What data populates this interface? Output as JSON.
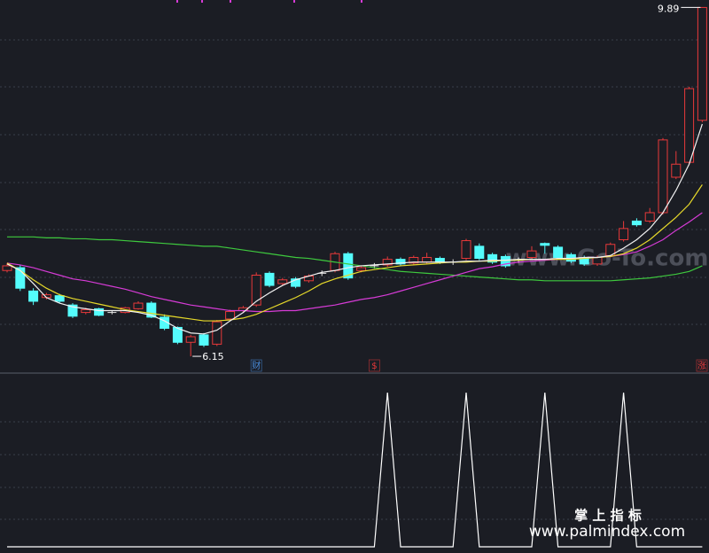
{
  "chart_data": [
    {
      "type": "candlestick",
      "open": [
        7.07,
        7.1,
        6.85,
        6.78,
        6.8,
        6.7,
        6.62,
        6.66,
        6.62,
        6.62,
        6.66,
        6.72,
        6.57,
        6.46,
        6.3,
        6.38,
        6.28,
        6.55,
        6.64,
        6.7,
        7.04,
        6.93,
        6.98,
        6.96,
        7.04,
        7.07,
        7.25,
        7.07,
        7.12,
        7.13,
        7.19,
        7.15,
        7.16,
        7.2,
        7.16,
        7.2,
        7.33,
        7.24,
        7.22,
        7.18,
        7.21,
        7.36,
        7.32,
        7.24,
        7.21,
        7.14,
        7.23,
        7.4,
        7.6,
        7.6,
        7.69,
        8.07,
        8.23,
        8.68
      ],
      "high": [
        7.15,
        7.13,
        6.88,
        6.83,
        6.82,
        6.72,
        6.67,
        6.67,
        6.64,
        6.68,
        6.74,
        6.74,
        6.6,
        6.47,
        6.38,
        6.4,
        6.54,
        6.65,
        6.69,
        7.05,
        7.06,
        6.99,
        7.0,
        7.03,
        7.07,
        7.27,
        7.27,
        7.12,
        7.15,
        7.22,
        7.21,
        7.23,
        7.26,
        7.22,
        7.19,
        7.41,
        7.36,
        7.26,
        7.24,
        7.21,
        7.33,
        7.37,
        7.34,
        7.26,
        7.23,
        7.23,
        7.37,
        7.6,
        7.63,
        7.74,
        8.49,
        8.35,
        9.04,
        9.89
      ],
      "low": [
        7.05,
        6.85,
        6.7,
        6.76,
        6.72,
        6.56,
        6.6,
        6.58,
        6.6,
        6.61,
        6.65,
        6.56,
        6.43,
        6.28,
        6.15,
        6.25,
        6.26,
        6.53,
        6.62,
        6.68,
        6.89,
        6.91,
        6.88,
        6.94,
        7.01,
        7.05,
        6.97,
        7.05,
        7.09,
        7.11,
        7.12,
        7.13,
        7.14,
        7.14,
        7.13,
        7.18,
        7.18,
        7.14,
        7.1,
        7.15,
        7.19,
        7.25,
        7.19,
        7.15,
        7.12,
        7.12,
        7.21,
        7.38,
        7.54,
        7.58,
        7.67,
        8.05,
        8.2,
        8.66
      ],
      "close": [
        7.12,
        6.88,
        6.74,
        6.81,
        6.74,
        6.58,
        6.65,
        6.59,
        6.62,
        6.67,
        6.72,
        6.57,
        6.45,
        6.3,
        6.36,
        6.27,
        6.52,
        6.63,
        6.67,
        7.02,
        6.91,
        6.97,
        6.9,
        7.01,
        7.04,
        7.25,
        6.99,
        7.1,
        7.12,
        7.19,
        7.14,
        7.21,
        7.21,
        7.16,
        7.16,
        7.39,
        7.2,
        7.16,
        7.12,
        7.18,
        7.28,
        7.34,
        7.21,
        7.17,
        7.14,
        7.21,
        7.35,
        7.52,
        7.56,
        7.69,
        8.47,
        8.21,
        9.02,
        9.89
      ],
      "up_color": "#e8393a",
      "down_color": "#54fcfc",
      "flat_color": "#e0e0e0",
      "ylim": [
        5.97,
        9.97
      ],
      "series": [
        {
          "color": "#3ec93e",
          "values": [
            7.43,
            7.43,
            7.43,
            7.42,
            7.42,
            7.41,
            7.41,
            7.4,
            7.4,
            7.39,
            7.38,
            7.37,
            7.36,
            7.35,
            7.34,
            7.33,
            7.33,
            7.31,
            7.29,
            7.27,
            7.25,
            7.23,
            7.21,
            7.2,
            7.18,
            7.16,
            7.14,
            7.12,
            7.1,
            7.08,
            7.06,
            7.05,
            7.04,
            7.03,
            7.02,
            7.01,
            7.0,
            6.99,
            6.98,
            6.97,
            6.97,
            6.96,
            6.96,
            6.96,
            6.96,
            6.96,
            6.96,
            6.97,
            6.98,
            6.99,
            7.01,
            7.03,
            7.06,
            7.12
          ]
        },
        {
          "color": "#d63bd6",
          "values": [
            7.15,
            7.13,
            7.1,
            7.06,
            7.02,
            6.98,
            6.96,
            6.93,
            6.9,
            6.87,
            6.83,
            6.79,
            6.76,
            6.73,
            6.7,
            6.68,
            6.66,
            6.64,
            6.64,
            6.63,
            6.63,
            6.64,
            6.64,
            6.66,
            6.68,
            6.7,
            6.73,
            6.76,
            6.78,
            6.81,
            6.85,
            6.89,
            6.93,
            6.97,
            7.01,
            7.05,
            7.09,
            7.11,
            7.14,
            7.16,
            7.17,
            7.18,
            7.19,
            7.2,
            7.21,
            7.21,
            7.22,
            7.24,
            7.27,
            7.33,
            7.4,
            7.5,
            7.59,
            7.69
          ]
        },
        {
          "color": "#e6d92a",
          "values": [
            7.15,
            7.07,
            6.97,
            6.88,
            6.81,
            6.77,
            6.74,
            6.71,
            6.68,
            6.65,
            6.63,
            6.61,
            6.59,
            6.57,
            6.55,
            6.53,
            6.53,
            6.54,
            6.56,
            6.6,
            6.66,
            6.72,
            6.78,
            6.85,
            6.93,
            6.98,
            7.02,
            7.06,
            7.08,
            7.1,
            7.12,
            7.13,
            7.14,
            7.15,
            7.16,
            7.16,
            7.17,
            7.17,
            7.18,
            7.18,
            7.19,
            7.19,
            7.19,
            7.19,
            7.2,
            7.21,
            7.22,
            7.25,
            7.31,
            7.4,
            7.52,
            7.64,
            7.78,
            7.99
          ]
        },
        {
          "color": "#f2f2f2",
          "values": [
            7.14,
            7.07,
            6.93,
            6.78,
            6.72,
            6.68,
            6.66,
            6.64,
            6.64,
            6.64,
            6.62,
            6.59,
            6.53,
            6.45,
            6.4,
            6.39,
            6.43,
            6.53,
            6.62,
            6.74,
            6.83,
            6.91,
            6.97,
            7.01,
            7.05,
            7.07,
            7.1,
            7.12,
            7.13,
            7.14,
            7.15,
            7.16,
            7.16,
            7.16,
            7.16,
            7.17,
            7.17,
            7.18,
            7.18,
            7.19,
            7.19,
            7.19,
            7.2,
            7.2,
            7.21,
            7.21,
            7.23,
            7.31,
            7.4,
            7.52,
            7.69,
            7.93,
            8.21,
            8.64
          ]
        }
      ],
      "max_label": 9.89,
      "min_label": 6.15,
      "events": [
        null,
        null,
        null,
        null,
        null,
        null,
        null,
        null,
        null,
        null,
        null,
        null,
        null,
        null,
        null,
        null,
        null,
        null,
        null,
        {
          "text": "财",
          "color": "#4a8ee0"
        },
        null,
        null,
        null,
        null,
        null,
        null,
        null,
        null,
        {
          "text": "$",
          "color": "#e8393a"
        },
        null,
        null,
        null,
        null,
        null,
        null,
        null,
        null,
        null,
        null,
        null,
        null,
        null,
        null,
        null,
        null,
        null,
        null,
        null,
        null,
        null,
        null,
        null,
        null,
        {
          "text": "涨",
          "color": "#e8393a"
        }
      ],
      "watermark": "www.Go-To.com"
    },
    {
      "type": "line",
      "color": "#ffffff",
      "ylim": [
        0,
        1
      ],
      "values": [
        0,
        0,
        0,
        0,
        0,
        0,
        0,
        0,
        0,
        0,
        0,
        0,
        0,
        0,
        0,
        0,
        0,
        0,
        0,
        0,
        0,
        0,
        0,
        0,
        0,
        0,
        0,
        0,
        0,
        1,
        0,
        0,
        0,
        0,
        0,
        1,
        0,
        0,
        0,
        0,
        0,
        1,
        0,
        0,
        0,
        0,
        0,
        1,
        0,
        0,
        0,
        0,
        0,
        0
      ]
    }
  ],
  "footer": {
    "title": "掌 上 指 标",
    "url": "www.palmindex.com"
  }
}
